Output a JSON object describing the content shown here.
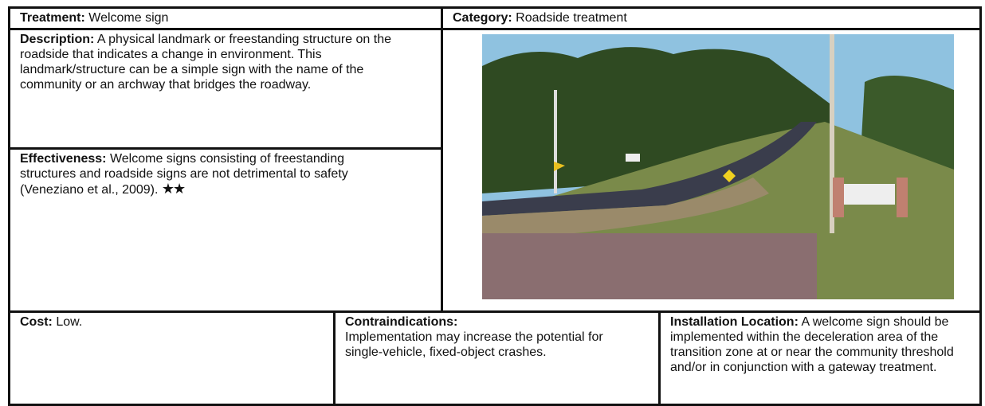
{
  "treatment": {
    "label": "Treatment:",
    "value": "Welcome sign"
  },
  "category": {
    "label": "Category:",
    "value": "Roadside treatment"
  },
  "description": {
    "label": "Description:",
    "value": "A physical landmark or freestanding structure on the roadside that indicates a change in environment. This landmark/structure can be a simple sign with the name of the community or an archway that bridges the roadway."
  },
  "effectiveness": {
    "label": "Effectiveness:",
    "value": "Welcome signs consisting of freestanding structures and roadside signs are not detrimental to safety (Veneziano et al., 2009).",
    "rating": "★★"
  },
  "cost": {
    "label": "Cost:",
    "value": "Low."
  },
  "contraindications": {
    "label": "Contraindications:",
    "value": "Implementation may increase the potential for single-vehicle, fixed-object crashes."
  },
  "installation_location": {
    "label": "Installation Location:",
    "value": "A welcome sign should be implemented within the deceleration area of the transition zone at or near the community threshold and/or in conjunction with a gateway treatment."
  }
}
